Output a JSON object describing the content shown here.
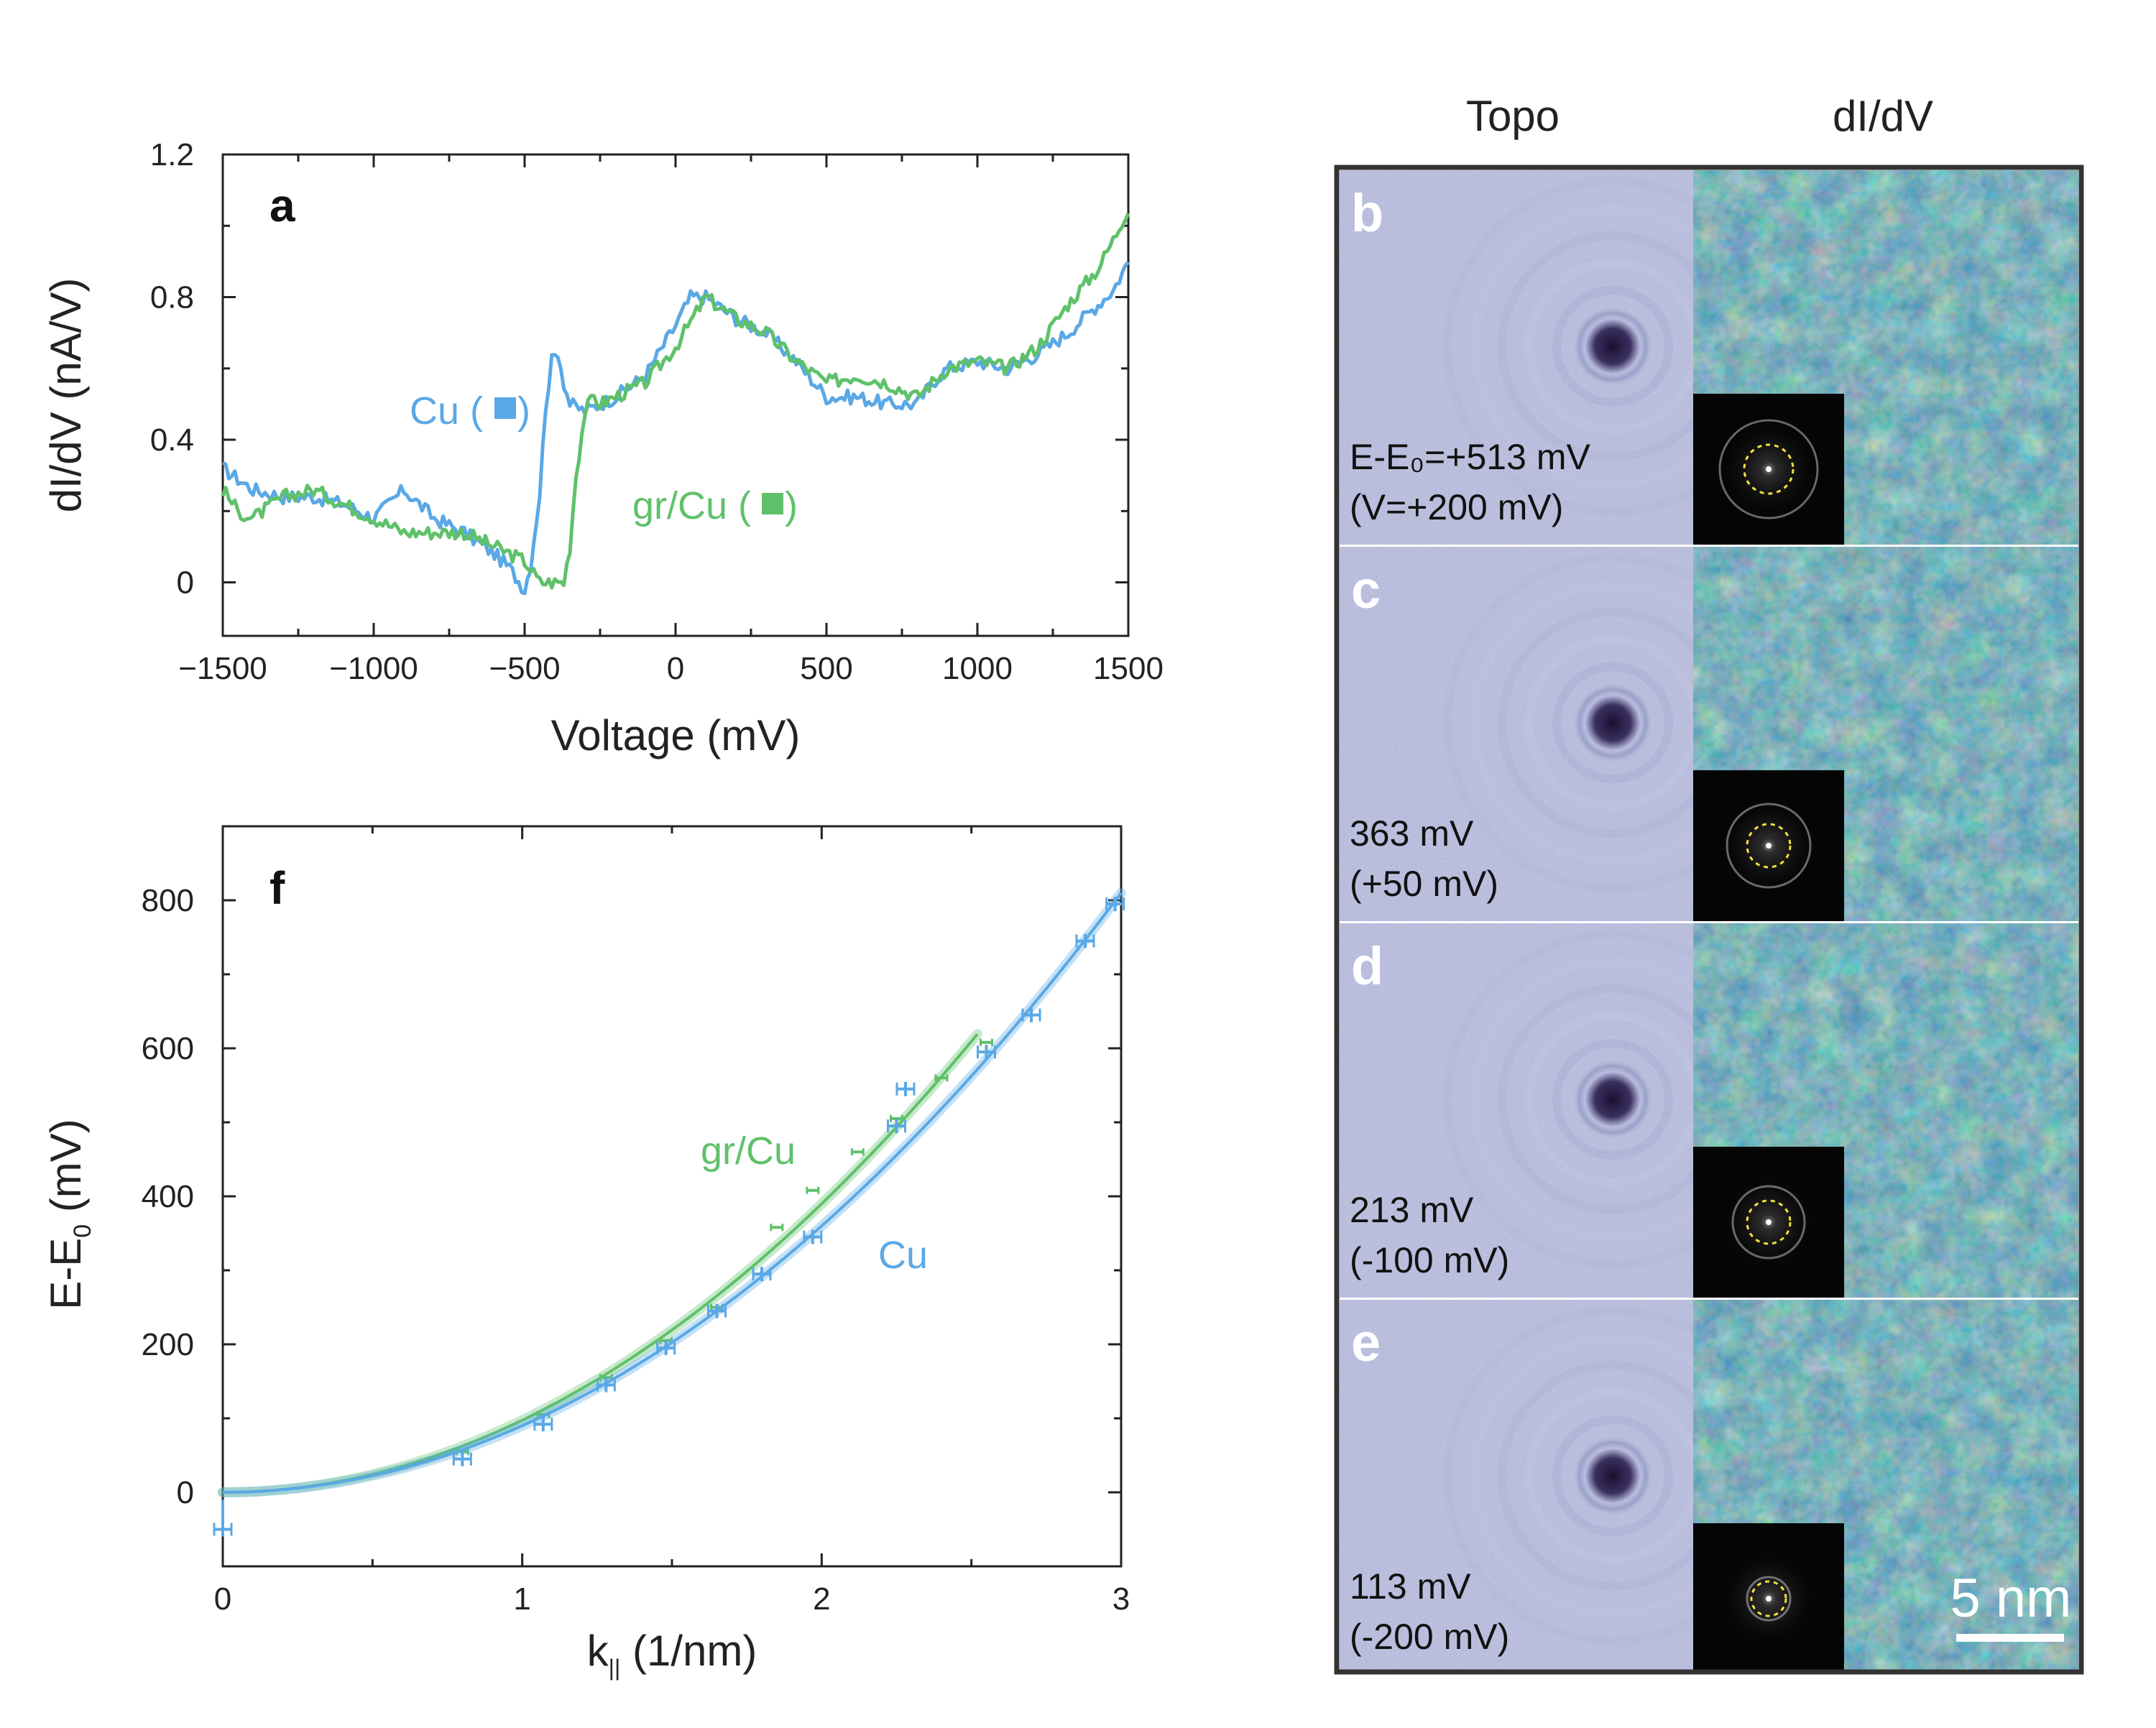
{
  "panel_a": {
    "label": "a",
    "chart_data": {
      "type": "line",
      "xlabel": "Voltage (mV)",
      "ylabel": "dI/dV (nA/V)",
      "xlim": [
        -1500,
        1500
      ],
      "ylim": [
        -0.15,
        1.2
      ],
      "xticks": [
        -1500,
        -1000,
        -500,
        0,
        500,
        1000,
        1500
      ],
      "xtick_labels": [
        "−1500",
        "−1000",
        "−500",
        "0",
        "500",
        "1000",
        "1500"
      ],
      "yticks": [
        0,
        0.4,
        0.8,
        1.2
      ],
      "ytick_labels": [
        "0",
        "0.4",
        "0.8",
        "1.2"
      ],
      "series": [
        {
          "name": "Cu",
          "label": "Cu (",
          "label_close": ")",
          "color": "#5aa8e6",
          "x": [
            -1500,
            -1400,
            -1300,
            -1200,
            -1100,
            -1000,
            -950,
            -900,
            -850,
            -800,
            -700,
            -600,
            -550,
            -500,
            -480,
            -450,
            -430,
            -410,
            -390,
            -370,
            -350,
            -300,
            -200,
            -100,
            0,
            50,
            100,
            200,
            300,
            400,
            500,
            600,
            700,
            750,
            800,
            850,
            900,
            1000,
            1100,
            1200,
            1300,
            1400,
            1450,
            1500
          ],
          "y": [
            0.32,
            0.26,
            0.24,
            0.24,
            0.22,
            0.18,
            0.22,
            0.26,
            0.22,
            0.18,
            0.14,
            0.08,
            0.04,
            -0.02,
            0.05,
            0.25,
            0.5,
            0.62,
            0.65,
            0.56,
            0.5,
            0.48,
            0.52,
            0.58,
            0.72,
            0.8,
            0.8,
            0.74,
            0.7,
            0.62,
            0.52,
            0.52,
            0.5,
            0.5,
            0.5,
            0.56,
            0.6,
            0.62,
            0.6,
            0.64,
            0.7,
            0.78,
            0.82,
            0.9
          ]
        },
        {
          "name": "gr/Cu",
          "label": "gr/Cu (",
          "label_close": ")",
          "color": "#5fc16a",
          "x": [
            -1500,
            -1450,
            -1400,
            -1300,
            -1200,
            -1100,
            -1000,
            -900,
            -800,
            -700,
            -600,
            -500,
            -450,
            -400,
            -370,
            -350,
            -330,
            -300,
            -270,
            -250,
            -200,
            -100,
            0,
            100,
            200,
            300,
            400,
            500,
            600,
            700,
            800,
            850,
            900,
            1000,
            1100,
            1200,
            1300,
            1400,
            1450,
            1500
          ],
          "y": [
            0.26,
            0.2,
            0.18,
            0.24,
            0.26,
            0.22,
            0.18,
            0.14,
            0.14,
            0.14,
            0.1,
            0.06,
            0.0,
            0.0,
            0.0,
            0.1,
            0.3,
            0.48,
            0.52,
            0.5,
            0.52,
            0.56,
            0.66,
            0.8,
            0.74,
            0.7,
            0.62,
            0.56,
            0.58,
            0.56,
            0.52,
            0.56,
            0.6,
            0.62,
            0.6,
            0.66,
            0.78,
            0.88,
            0.96,
            1.05
          ]
        }
      ]
    }
  },
  "panel_f": {
    "label": "f",
    "chart_data": {
      "type": "scatter",
      "xlabel_main": "k",
      "xlabel_sub": "||",
      "xlabel_rest": " (1/nm)",
      "ylabel_main": "E-E",
      "ylabel_sub": "0",
      "ylabel_rest": " (mV)",
      "xlim": [
        0,
        3
      ],
      "ylim": [
        -100,
        900
      ],
      "xticks": [
        0,
        1,
        2,
        3
      ],
      "xtick_labels": [
        "0",
        "1",
        "2",
        "3"
      ],
      "yticks": [
        0,
        200,
        400,
        600,
        800
      ],
      "ytick_labels": [
        "0",
        "200",
        "400",
        "600",
        "800"
      ],
      "series": [
        {
          "name": "gr/Cu",
          "color": "#5fc16a",
          "fit": {
            "x_max": 2.52,
            "coef": 97.5
          },
          "x": [
            0.8,
            1.07,
            1.28,
            1.48,
            1.65,
            1.85,
            1.97,
            2.12,
            2.25,
            2.4,
            2.55
          ],
          "y": [
            55,
            105,
            155,
            205,
            250,
            358,
            408,
            460,
            505,
            560,
            608
          ]
        },
        {
          "name": "Cu",
          "color": "#5aa8e6",
          "fit": {
            "x_max": 3.0,
            "coef": 90
          },
          "x": [
            0,
            0.8,
            1.07,
            1.28,
            1.48,
            1.65,
            1.8,
            1.97,
            2.25,
            2.28,
            2.55,
            2.7,
            2.88,
            2.98
          ],
          "y": [
            -50,
            45,
            92,
            145,
            195,
            245,
            295,
            345,
            495,
            545,
            595,
            645,
            745,
            795
          ]
        }
      ],
      "annotations": [
        "gr/Cu",
        "Cu"
      ]
    }
  },
  "images": {
    "col_topo": "Topo",
    "col_didv": "dI/dV",
    "scale_bar": "5 nm",
    "rows": [
      {
        "label": "b",
        "energy": "E-E₀=+513 mV",
        "bias": "(V=+200 mV)"
      },
      {
        "label": "c",
        "energy": "363 mV",
        "bias": "(+50 mV)"
      },
      {
        "label": "d",
        "energy": "213 mV",
        "bias": "(-100 mV)"
      },
      {
        "label": "e",
        "energy": "113 mV",
        "bias": "(-200 mV)"
      }
    ]
  }
}
